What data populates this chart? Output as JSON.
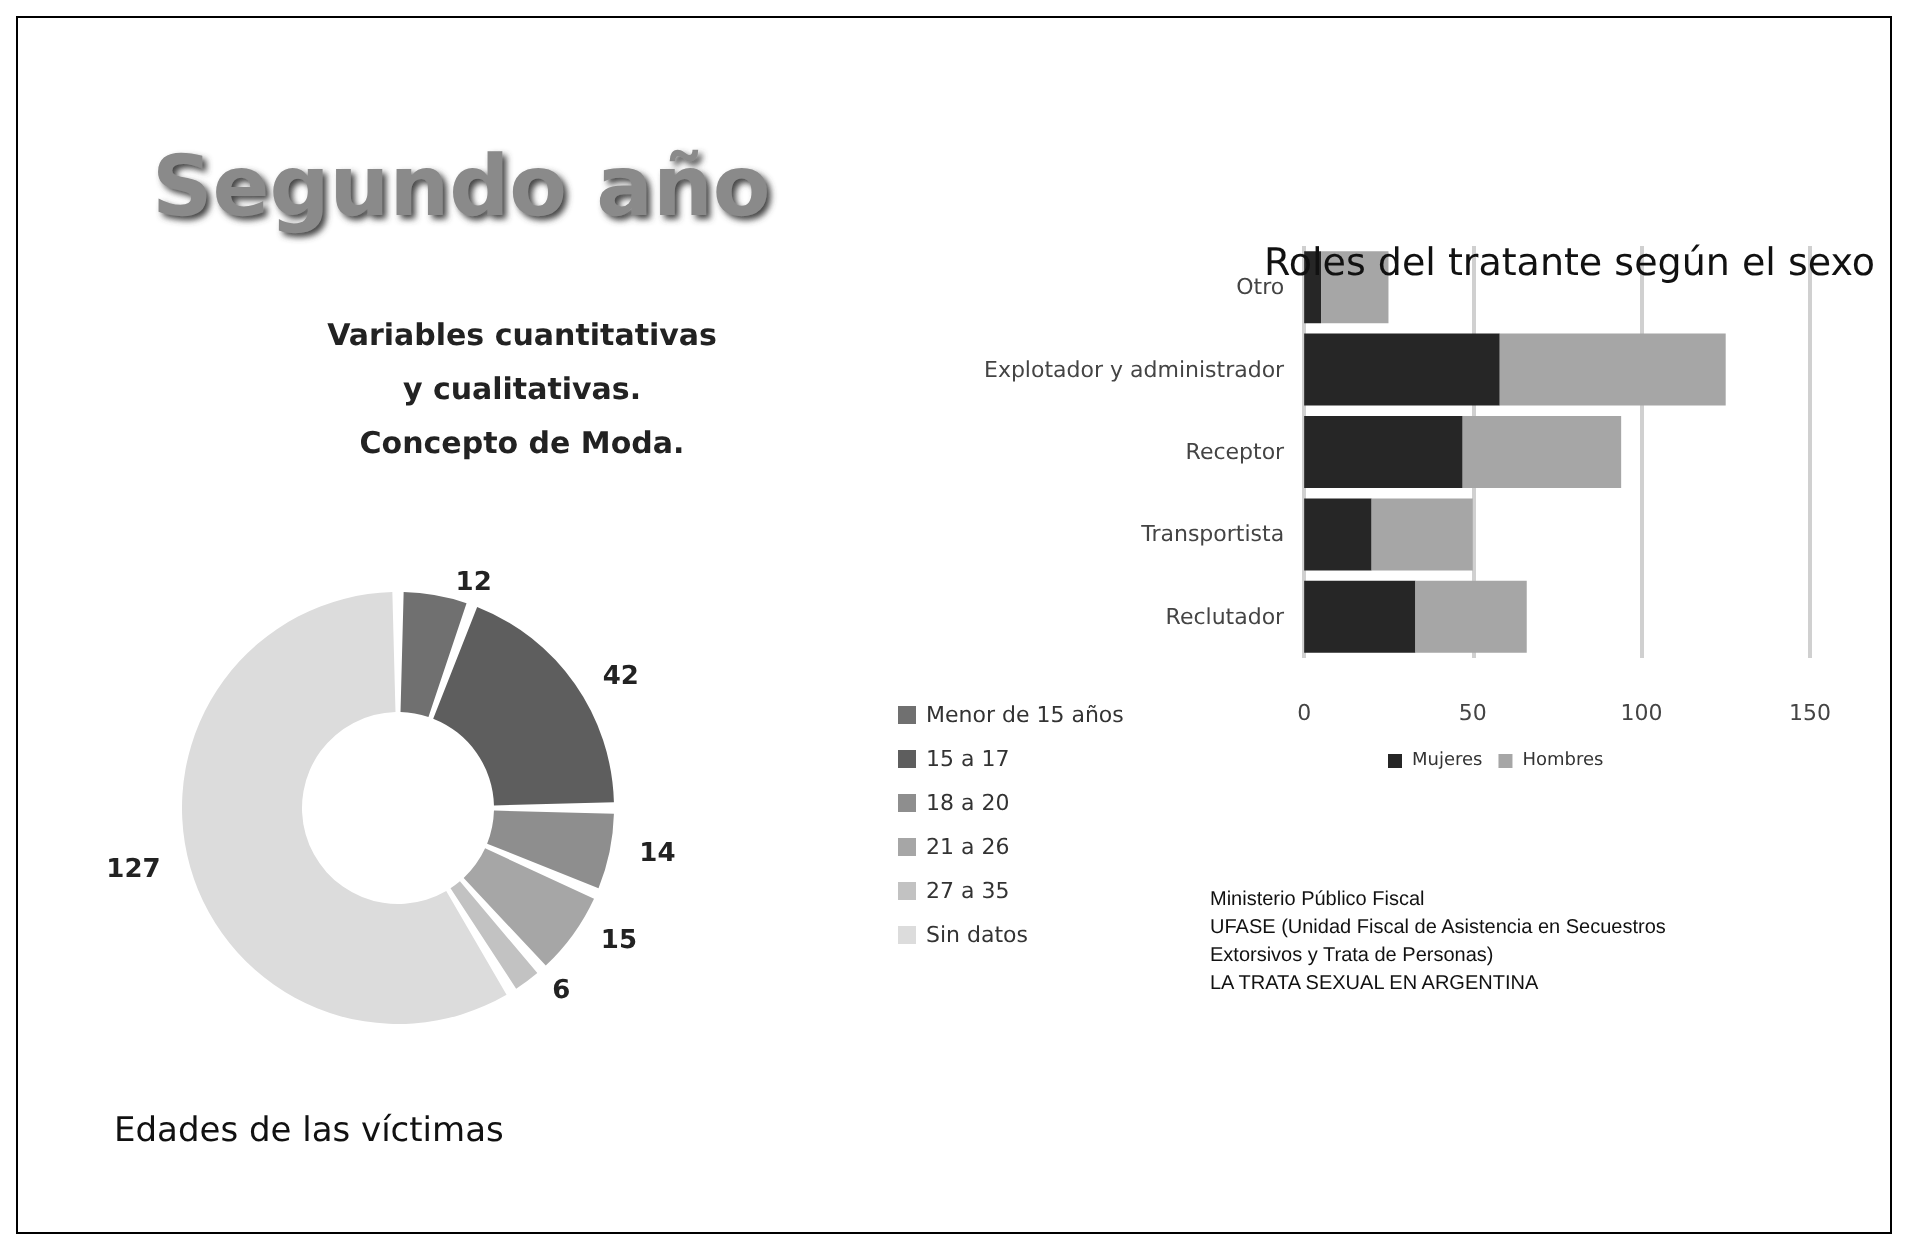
{
  "chart_data": [
    {
      "type": "donut",
      "title": "Segundo año",
      "subtitle": "Variables cuantitativas\ny cualitativas.\nConcepto de Moda.",
      "annotations": [
        "Edades de las víctimas"
      ],
      "categories": [
        "Menor de 15 años",
        "15 a 17",
        "18 a 20",
        "21 a 26",
        "27 a 35",
        "Sin datos"
      ],
      "values": [
        12,
        42,
        14,
        15,
        6,
        127
      ],
      "colors": [
        "#707070",
        "#5e5e5e",
        "#8e8e8e",
        "#a6a6a6",
        "#c2c2c2",
        "#dcdcdc"
      ],
      "data_labels": true,
      "legend": "right"
    },
    {
      "type": "bar",
      "title": "Roles del tratante según el sexo",
      "orientation": "horizontal",
      "stacked": true,
      "categories": [
        "Otro",
        "Explotador y administrador",
        "Receptor",
        "Transportista",
        "Reclutador"
      ],
      "series": [
        {
          "name": "Mujeres",
          "color": "#262626",
          "values": [
            5,
            58,
            47,
            20,
            33
          ]
        },
        {
          "name": "Hombres",
          "color": "#a6a6a6",
          "values": [
            20,
            67,
            47,
            30,
            33
          ]
        }
      ],
      "xlim": [
        0,
        150
      ],
      "xticks": [
        0,
        50,
        100,
        150
      ],
      "grid": "x",
      "legend": "bottom",
      "annotations": [
        "Ministerio Público Fiscal\nUFASE (Unidad Fiscal de Asistencia en Secuestros\nExtorsivos y Trata de Personas)\nLA TRATA SEXUAL EN ARGENTINA"
      ]
    }
  ]
}
